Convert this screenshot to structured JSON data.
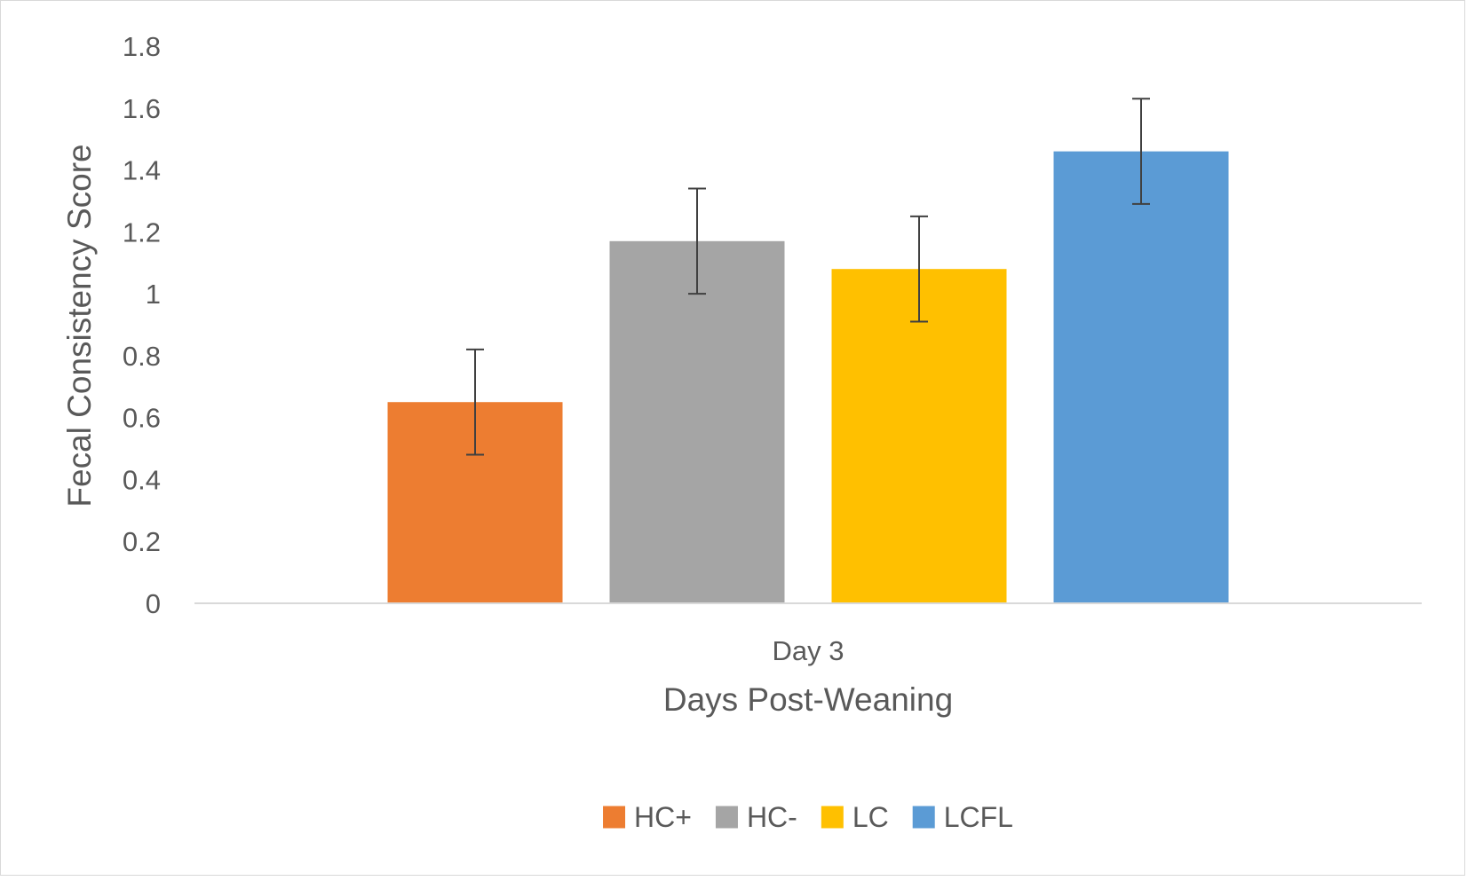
{
  "chart_data": {
    "type": "bar",
    "title": "",
    "xlabel": "Days Post-Weaning",
    "ylabel": "Fecal Consistency Score",
    "categories": [
      "Day 3"
    ],
    "ylim": [
      0,
      1.8
    ],
    "yticks": [
      0,
      0.2,
      0.4,
      0.6,
      0.8,
      1,
      1.2,
      1.4,
      1.6,
      1.8
    ],
    "grid": false,
    "legend_position": "bottom",
    "series": [
      {
        "name": "HC+",
        "values": [
          0.65
        ],
        "error_low": [
          0.48
        ],
        "error_high": [
          0.82
        ],
        "color": "#ED7D31"
      },
      {
        "name": "HC-",
        "values": [
          1.17
        ],
        "error_low": [
          1.0
        ],
        "error_high": [
          1.34
        ],
        "color": "#A5A5A5"
      },
      {
        "name": "LC",
        "values": [
          1.08
        ],
        "error_low": [
          0.91
        ],
        "error_high": [
          1.25
        ],
        "color": "#FFC000"
      },
      {
        "name": "LCFL",
        "values": [
          1.46
        ],
        "error_low": [
          1.29
        ],
        "error_high": [
          1.63
        ],
        "color": "#5B9BD5"
      }
    ]
  },
  "colors": {
    "text": "#595959",
    "axis_line": "#d9d9d9",
    "error_bar": "#404040"
  }
}
